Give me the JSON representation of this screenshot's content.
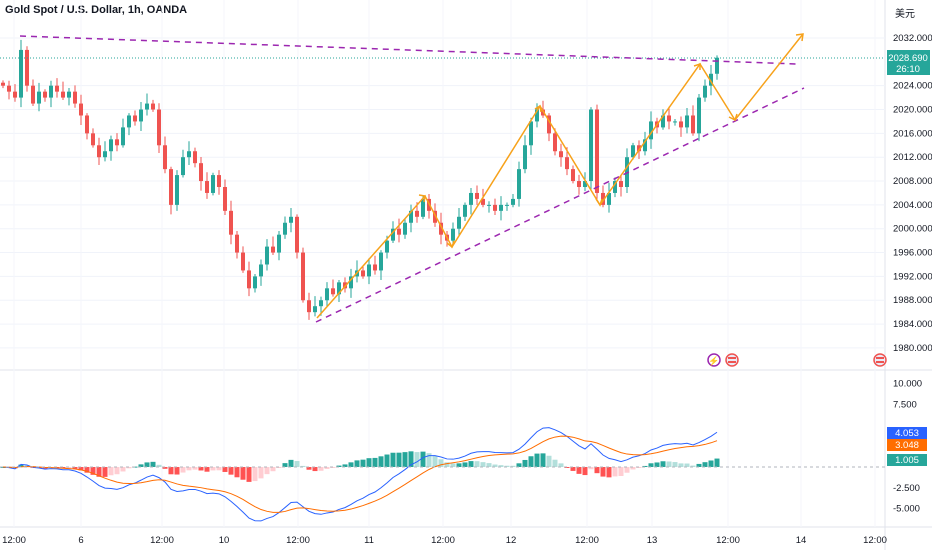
{
  "header": {
    "title": "Gold Spot / U.S. Dollar, 1h, OANDA",
    "currency": "美元"
  },
  "colors": {
    "up": "#26a69a",
    "down": "#ef5350",
    "trend": "#9c27b0",
    "arrow": "#f7a21b",
    "macd": "#2962ff",
    "signal": "#ff6d00"
  },
  "price_badge": {
    "price": "2028.690",
    "countdown": "26:10"
  },
  "indicator_badges": {
    "macd": "4.053",
    "signal": "3.048",
    "hist": "1.005"
  },
  "chart_data": [
    {
      "type": "candlestick",
      "title": "Gold Spot / U.S. Dollar, 1h, OANDA",
      "ylim": [
        1978,
        2035
      ],
      "yticks": [
        "2032.000",
        "2024.000",
        "2020.000",
        "2016.000",
        "2012.000",
        "2008.000",
        "2004.000",
        "2000.000",
        "1996.000",
        "1992.000",
        "1988.000",
        "1984.000",
        "1980.000"
      ],
      "ytick_values": [
        2032,
        2024,
        2020,
        2016,
        2012,
        2008,
        2004,
        2000,
        1996,
        1992,
        1988,
        1984,
        1980
      ],
      "xticks": [
        "12:00",
        "6",
        "12:00",
        "10",
        "12:00",
        "11",
        "12:00",
        "12",
        "12:00",
        "13",
        "12:00",
        "14",
        "12:00"
      ],
      "closes": [
        2024,
        2023,
        2022,
        2030,
        2024,
        2021,
        2023,
        2022,
        2024,
        2023,
        2022,
        2023,
        2021,
        2019,
        2016,
        2014,
        2012,
        2013,
        2015,
        2014,
        2017,
        2019,
        2018,
        2020,
        2021,
        2020,
        2014,
        2010,
        2004,
        2009,
        2012,
        2013,
        2011,
        2008,
        2006,
        2009,
        2007,
        2003,
        1999,
        1996,
        1993,
        1990,
        1992,
        1994,
        1997,
        1996,
        1999,
        2001,
        2002,
        1996,
        1988,
        1986,
        1987,
        1988,
        1990,
        1989,
        1991,
        1990,
        1992,
        1993,
        1992,
        1994,
        1993,
        1996,
        1998,
        2000,
        1999,
        2001,
        2003,
        2002,
        2005,
        2003,
        2001,
        1999,
        1998,
        2000,
        2002,
        2004,
        2006,
        2005,
        2004,
        2004,
        2003,
        2004,
        2004,
        2005,
        2010,
        2014,
        2018,
        2020,
        2019,
        2016,
        2013,
        2012,
        2010,
        2008,
        2007,
        2008,
        2020,
        2006,
        2004,
        2006,
        2008,
        2007,
        2012,
        2014,
        2013,
        2015,
        2018,
        2017,
        2019,
        2018,
        2018,
        2017,
        2019,
        2016,
        2022,
        2024,
        2026,
        2028.69
      ],
      "last_price": 2028.69
    },
    {
      "type": "macd",
      "ylim": [
        -7,
        11.5
      ],
      "yticks": [
        "10.000",
        "7.500",
        "-2.500",
        "-5.000"
      ],
      "ytick_values": [
        10,
        7.5,
        -2.5,
        -5
      ],
      "last": {
        "macd": 4.053,
        "signal": 3.048,
        "hist": 1.005
      }
    }
  ]
}
